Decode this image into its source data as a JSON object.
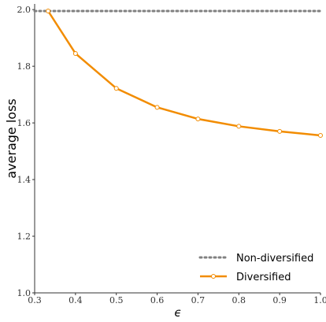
{
  "chart_data": {
    "type": "line",
    "title": "",
    "xlabel": "ϵ",
    "ylabel": "average loss",
    "xlim": [
      0.3,
      1.0
    ],
    "ylim": [
      1.0,
      2.02
    ],
    "x_ticks": [
      "0.3",
      "0.4",
      "0.5",
      "0.6",
      "0.7",
      "0.8",
      "0.9",
      "1.0"
    ],
    "y_ticks": [
      "1.0",
      "1.2",
      "1.4",
      "1.6",
      "1.8",
      "2.0"
    ],
    "grid": false,
    "legend_position": "bottom-right",
    "series": [
      {
        "name": "Non-diversified",
        "style": "dotted",
        "color": "#808080",
        "x": [
          0.3,
          1.0
        ],
        "y": [
          1.995,
          1.995
        ]
      },
      {
        "name": "Diversified",
        "style": "solid-with-markers",
        "color": "#f28c00",
        "x": [
          0.333,
          0.4,
          0.5,
          0.6,
          0.7,
          0.8,
          0.9,
          1.0
        ],
        "y": [
          1.995,
          1.845,
          1.722,
          1.655,
          1.614,
          1.588,
          1.57,
          1.556
        ]
      }
    ]
  }
}
